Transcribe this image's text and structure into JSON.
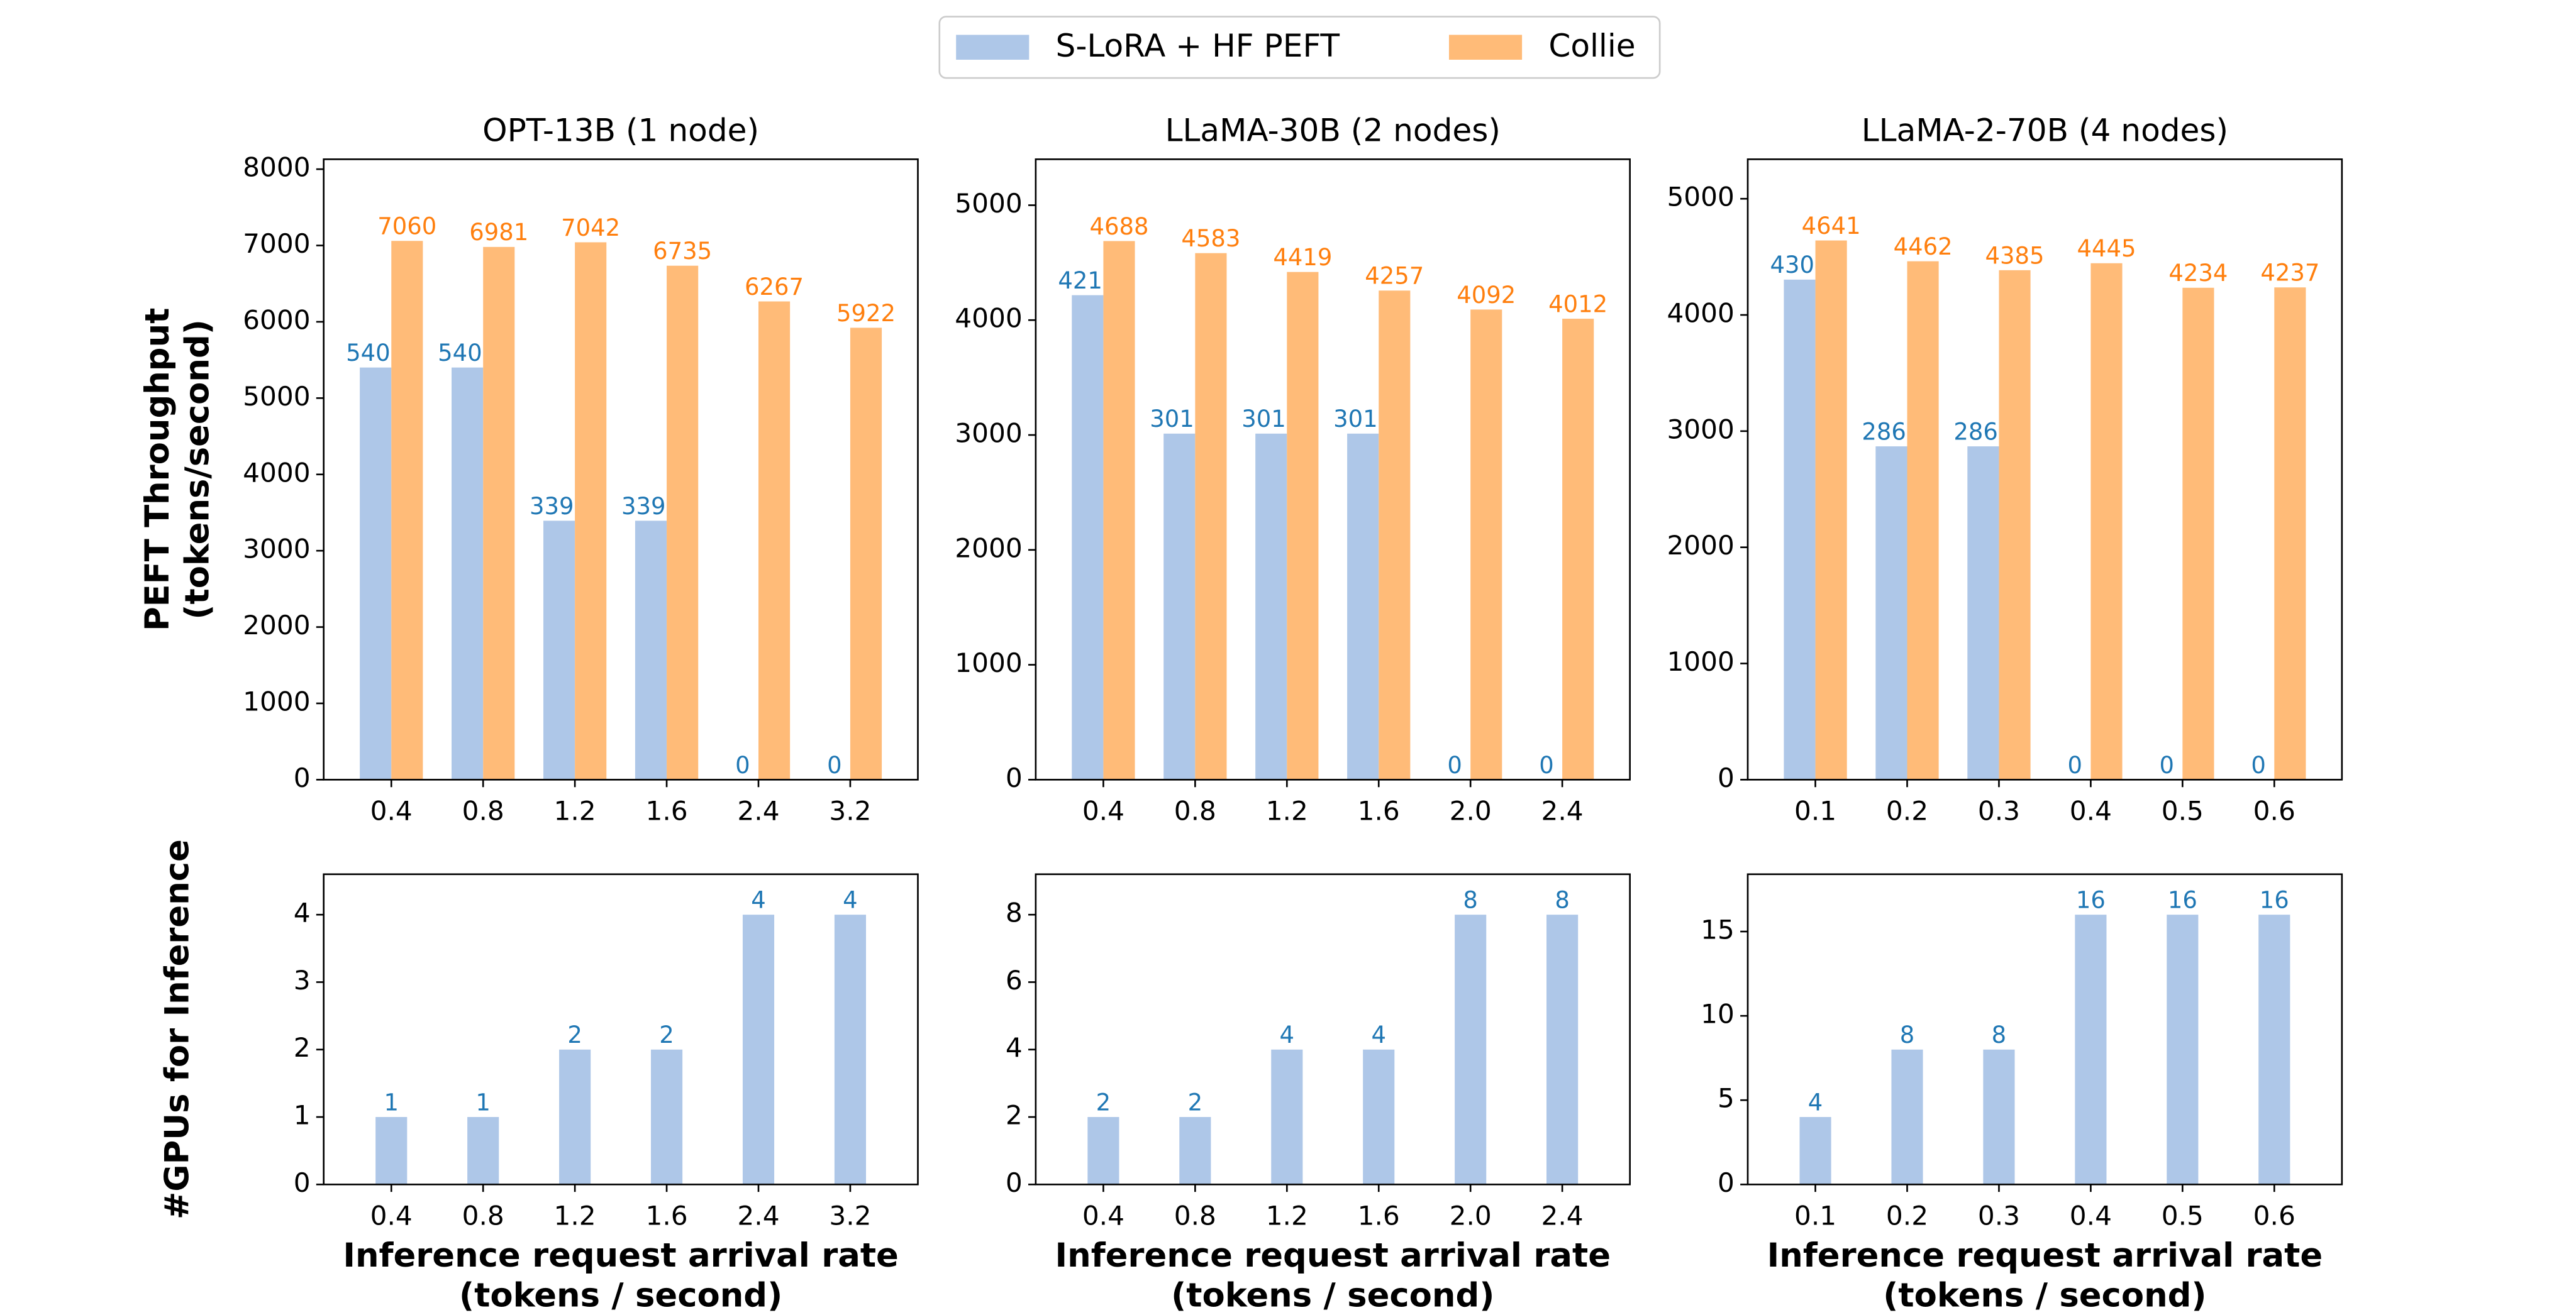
{
  "chart_data": [
    {
      "type": "bar",
      "title": "OPT-13B (1 node)",
      "ylabel": [
        "PEFT Throughput",
        "(tokens/second)"
      ],
      "categories": [
        "0.4",
        "0.8",
        "1.2",
        "1.6",
        "2.4",
        "3.2"
      ],
      "series": [
        {
          "name": "S-LoRA + HF PEFT",
          "color": "#aec7e8",
          "label_color": "#1f77b4",
          "values": [
            5401,
            5401,
            3393,
            3393,
            0,
            0
          ]
        },
        {
          "name": "Collie",
          "color": "#ffbb78",
          "label_color": "#ff7f0e",
          "values": [
            7060,
            6981,
            7042,
            6735,
            6267,
            5922
          ]
        }
      ],
      "ylim": [
        0,
        8130
      ],
      "yticks": [
        0,
        1000,
        2000,
        3000,
        4000,
        5000,
        6000,
        7000,
        8000
      ]
    },
    {
      "type": "bar",
      "title": "LLaMA-30B (2 nodes)",
      "categories": [
        "0.4",
        "0.8",
        "1.2",
        "1.6",
        "2.0",
        "2.4"
      ],
      "series": [
        {
          "color": "#aec7e8",
          "label_color": "#1f77b4",
          "values": [
            4217,
            3012,
            3012,
            3012,
            0,
            0
          ]
        },
        {
          "color": "#ffbb78",
          "label_color": "#ff7f0e",
          "values": [
            4688,
            4583,
            4419,
            4257,
            4092,
            4012
          ]
        }
      ],
      "ylim": [
        0,
        5400
      ],
      "yticks": [
        0,
        1000,
        2000,
        3000,
        4000,
        5000
      ]
    },
    {
      "type": "bar",
      "title": "LLaMA-2-70B (4 nodes)",
      "categories": [
        "0.1",
        "0.2",
        "0.3",
        "0.4",
        "0.5",
        "0.6"
      ],
      "series": [
        {
          "color": "#aec7e8",
          "label_color": "#1f77b4",
          "values": [
            4304,
            2869,
            2869,
            0,
            0,
            0
          ]
        },
        {
          "color": "#ffbb78",
          "label_color": "#ff7f0e",
          "values": [
            4641,
            4462,
            4385,
            4445,
            4234,
            4237
          ]
        }
      ],
      "ylim": [
        0,
        5340
      ],
      "yticks": [
        0,
        1000,
        2000,
        3000,
        4000,
        5000
      ]
    },
    {
      "type": "bar",
      "ylabel": [
        "#GPUs for Inference"
      ],
      "xlabel": [
        "Inference request arrival rate",
        "(tokens / second)"
      ],
      "categories": [
        "0.4",
        "0.8",
        "1.2",
        "1.6",
        "2.4",
        "3.2"
      ],
      "values": [
        1,
        1,
        2,
        2,
        4,
        4
      ],
      "color": "#aec7e8",
      "label_color": "#1f77b4",
      "ylim": [
        0,
        4.6
      ],
      "yticks": [
        0,
        1,
        2,
        3,
        4
      ]
    },
    {
      "type": "bar",
      "xlabel": [
        "Inference request arrival rate",
        "(tokens / second)"
      ],
      "categories": [
        "0.4",
        "0.8",
        "1.2",
        "1.6",
        "2.0",
        "2.4"
      ],
      "values": [
        2,
        2,
        4,
        4,
        8,
        8
      ],
      "color": "#aec7e8",
      "label_color": "#1f77b4",
      "ylim": [
        0,
        9.2
      ],
      "yticks": [
        0,
        2,
        4,
        6,
        8
      ]
    },
    {
      "type": "bar",
      "xlabel": [
        "Inference request arrival rate",
        "(tokens / second)"
      ],
      "categories": [
        "0.1",
        "0.2",
        "0.3",
        "0.4",
        "0.5",
        "0.6"
      ],
      "values": [
        4,
        8,
        8,
        16,
        16,
        16
      ],
      "color": "#aec7e8",
      "label_color": "#1f77b4",
      "ylim": [
        0,
        18.4
      ],
      "yticks": [
        0,
        5,
        10,
        15
      ]
    }
  ]
}
